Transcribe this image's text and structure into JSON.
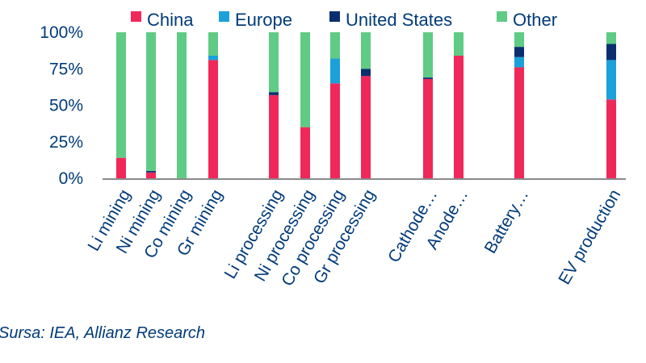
{
  "chart_data": {
    "type": "bar",
    "stacked": true,
    "categories": [
      "Li mining",
      "Ni mining",
      "Co mining",
      "Gr mining",
      "Li processing",
      "Ni processing",
      "Co processing",
      "Gr processing",
      "Cathode…",
      "Anode…",
      "Battery…",
      "EV production"
    ],
    "series": [
      {
        "name": "China",
        "color": "#F0285A",
        "values": [
          14,
          4,
          0,
          81,
          57,
          35,
          65,
          70,
          68,
          84,
          76,
          54
        ]
      },
      {
        "name": "Europe",
        "color": "#1AA1DA",
        "values": [
          0,
          0,
          0,
          3,
          0,
          0,
          17,
          0,
          0,
          0,
          7,
          27
        ]
      },
      {
        "name": "United States",
        "color": "#0A2E6E",
        "values": [
          0,
          1,
          0,
          0,
          2,
          0,
          0,
          5,
          1,
          0,
          7,
          11
        ]
      },
      {
        "name": "Other",
        "color": "#5FCB84",
        "values": [
          86,
          95,
          100,
          16,
          41,
          65,
          18,
          25,
          31,
          16,
          10,
          8
        ]
      }
    ],
    "yticks": [
      "0%",
      "25%",
      "50%",
      "75%",
      "100%"
    ],
    "ylim": [
      0,
      100
    ],
    "legend_position": "top",
    "grid": false
  },
  "source": "Sursa: IEA, Allianz Research"
}
